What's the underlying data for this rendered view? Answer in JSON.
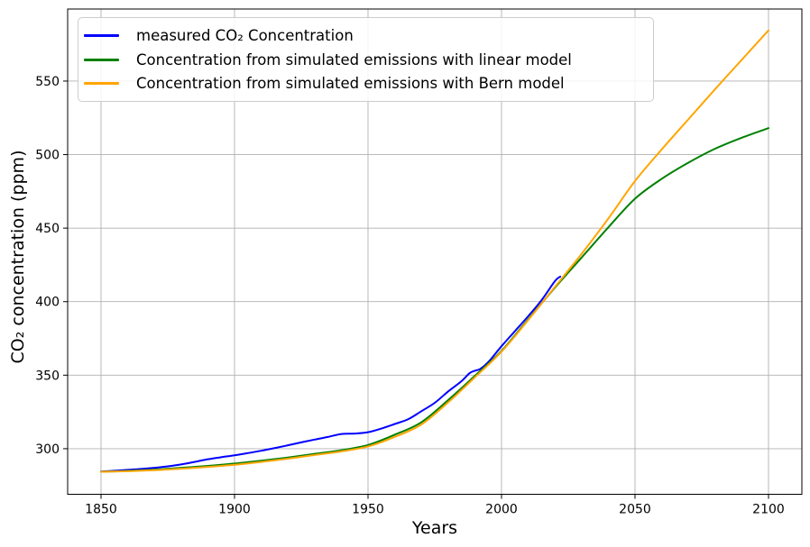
{
  "figure": {
    "background": "#ffffff",
    "grid_color": "#b0b0b0",
    "frame_color": "#000000",
    "tick_label_color": "#000000"
  },
  "chart_data": {
    "type": "line",
    "title": "",
    "xlabel": "Years",
    "ylabel": "CO₂ concentration (ppm)",
    "xlim": [
      1837.5,
      2112.5
    ],
    "ylim": [
      269,
      599
    ],
    "xticks": [
      1850,
      1900,
      1950,
      2000,
      2050,
      2100
    ],
    "yticks": [
      300,
      350,
      400,
      450,
      500,
      550
    ],
    "grid": true,
    "legend_position": "upper left",
    "series": [
      {
        "name": "measured CO₂ Concentration",
        "color": "#0000ff",
        "x": [
          1850,
          1855,
          1860,
          1865,
          1870,
          1875,
          1880,
          1885,
          1890,
          1895,
          1900,
          1905,
          1910,
          1915,
          1920,
          1925,
          1930,
          1935,
          1940,
          1945,
          1950,
          1955,
          1960,
          1965,
          1970,
          1975,
          1980,
          1985,
          1988,
          1990,
          1992,
          1995,
          2000,
          2005,
          2010,
          2015,
          2020,
          2022
        ],
        "y": [
          284.5,
          285.0,
          285.6,
          286.2,
          287.0,
          288.0,
          289.3,
          291.0,
          292.8,
          294.2,
          295.5,
          297.0,
          298.6,
          300.4,
          302.3,
          304.3,
          306.2,
          308.0,
          310.0,
          310.3,
          311.2,
          313.7,
          316.8,
          320.0,
          325.5,
          331.2,
          338.9,
          345.9,
          351.3,
          353.0,
          354.2,
          358.8,
          369.7,
          379.9,
          390.1,
          401.0,
          413.9,
          417.0
        ]
      },
      {
        "name": "Concentration from simulated emissions with linear model",
        "color": "#008000",
        "x": [
          1850,
          1860,
          1870,
          1880,
          1890,
          1900,
          1910,
          1920,
          1930,
          1940,
          1950,
          1960,
          1970,
          1980,
          1990,
          2000,
          2010,
          2020,
          2030,
          2040,
          2050,
          2060,
          2070,
          2080,
          2090,
          2100
        ],
        "y": [
          284.3,
          284.9,
          285.8,
          287.0,
          288.3,
          289.9,
          291.8,
          294.0,
          296.5,
          299.0,
          302.5,
          309.5,
          318.0,
          333.0,
          349.5,
          366.5,
          388.0,
          409.5,
          430.0,
          450.5,
          470.0,
          483.5,
          494.5,
          504.0,
          511.5,
          518.0
        ]
      },
      {
        "name": "Concentration from simulated emissions with Bern model",
        "color": "#ffa500",
        "x": [
          1850,
          1860,
          1870,
          1880,
          1890,
          1900,
          1910,
          1920,
          1930,
          1940,
          1950,
          1960,
          1970,
          1980,
          1990,
          2000,
          2010,
          2020,
          2030,
          2040,
          2050,
          2060,
          2070,
          2080,
          2090,
          2100
        ],
        "y": [
          284.3,
          284.7,
          285.4,
          286.4,
          287.6,
          289.1,
          291.0,
          293.2,
          295.7,
          298.2,
          301.5,
          308.0,
          316.5,
          331.5,
          348.5,
          366.0,
          387.5,
          410.0,
          432.5,
          456.5,
          482.0,
          503.5,
          524.0,
          544.5,
          564.5,
          584.5
        ]
      }
    ]
  }
}
